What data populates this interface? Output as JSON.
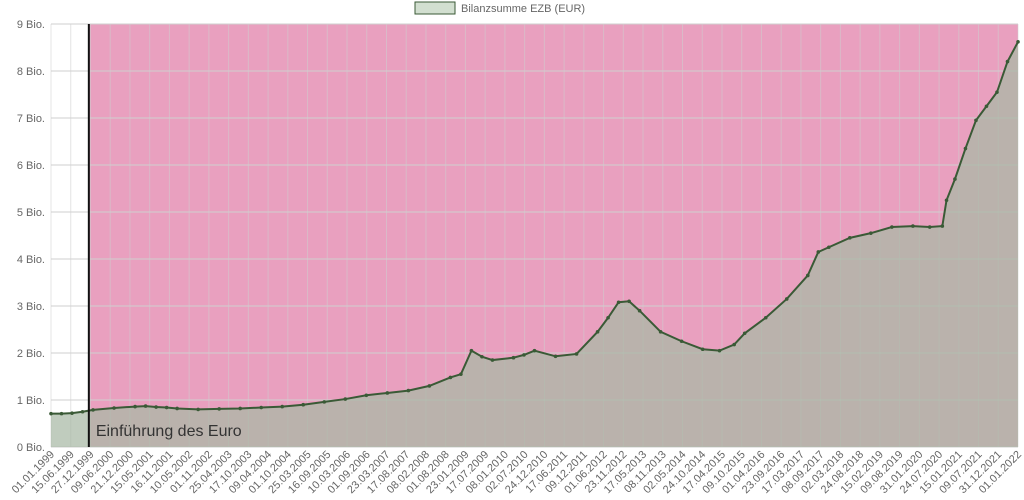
{
  "chart_data": {
    "type": "line",
    "title": "",
    "xlabel": "",
    "ylabel": "",
    "legend": {
      "position": "top-center",
      "entries": [
        "Bilanzsumme EZB (EUR)"
      ]
    },
    "grid": true,
    "ylim": [
      0,
      9
    ],
    "y_ticks": [
      "0 Bio.",
      "1 Bio.",
      "2 Bio.",
      "3 Bio.",
      "4 Bio.",
      "5 Bio.",
      "6 Bio.",
      "7 Bio.",
      "8 Bio.",
      "9 Bio."
    ],
    "x_tick_labels": [
      "01.01.1999",
      "15.06.1999",
      "27.12.1999",
      "09.06.2000",
      "21.12.2000",
      "15.05.2001",
      "16.11.2001",
      "10.05.2002",
      "01.11.2002",
      "25.04.2003",
      "17.10.2003",
      "09.04.2004",
      "01.10.2004",
      "25.03.2005",
      "16.09.2005",
      "10.03.2006",
      "01.09.2006",
      "23.03.2007",
      "17.08.2007",
      "08.02.2008",
      "01.08.2008",
      "23.01.2009",
      "17.07.2009",
      "08.01.2010",
      "02.07.2010",
      "24.12.2010",
      "17.06.2011",
      "09.12.2011",
      "01.06.2012",
      "23.11.2012",
      "17.05.2013",
      "08.11.2013",
      "02.05.2014",
      "24.10.2014",
      "17.04.2015",
      "09.10.2015",
      "01.04.2016",
      "23.09.2016",
      "17.03.2017",
      "08.09.2017",
      "02.03.2018",
      "24.08.2018",
      "15.02.2019",
      "09.08.2019",
      "31.01.2020",
      "24.07.2020",
      "15.01.2021",
      "09.07.2021",
      "31.12.2021",
      "01.01.2022"
    ],
    "series": [
      {
        "name": "Bilanzsumme EZB (EUR)",
        "unit": "Bio. EUR",
        "x": [
          1999.0,
          1999.25,
          1999.5,
          1999.75,
          2000.0,
          2000.5,
          2001.0,
          2001.25,
          2001.5,
          2001.75,
          2002.0,
          2002.5,
          2003.0,
          2003.5,
          2004.0,
          2004.5,
          2005.0,
          2005.5,
          2006.0,
          2006.5,
          2007.0,
          2007.5,
          2008.0,
          2008.5,
          2008.75,
          2009.0,
          2009.25,
          2009.5,
          2010.0,
          2010.25,
          2010.5,
          2011.0,
          2011.5,
          2012.0,
          2012.25,
          2012.5,
          2012.75,
          2013.0,
          2013.5,
          2014.0,
          2014.5,
          2014.9,
          2015.25,
          2015.5,
          2016.0,
          2016.5,
          2017.0,
          2017.25,
          2017.5,
          2018.0,
          2018.5,
          2019.0,
          2019.5,
          2019.9,
          2020.2,
          2020.3,
          2020.5,
          2020.75,
          2021.0,
          2021.25,
          2021.5,
          2021.75,
          2022.0
        ],
        "values": [
          0.71,
          0.71,
          0.72,
          0.75,
          0.79,
          0.83,
          0.86,
          0.87,
          0.85,
          0.84,
          0.82,
          0.8,
          0.81,
          0.82,
          0.84,
          0.86,
          0.9,
          0.96,
          1.02,
          1.1,
          1.15,
          1.2,
          1.3,
          1.48,
          1.55,
          2.05,
          1.92,
          1.85,
          1.9,
          1.96,
          2.05,
          1.93,
          1.98,
          2.45,
          2.75,
          3.08,
          3.1,
          2.9,
          2.45,
          2.25,
          2.08,
          2.05,
          2.18,
          2.42,
          2.75,
          3.15,
          3.65,
          4.15,
          4.25,
          4.45,
          4.55,
          4.68,
          4.7,
          4.68,
          4.7,
          5.25,
          5.7,
          6.35,
          6.95,
          7.25,
          7.55,
          8.2,
          8.62
        ]
      }
    ],
    "annotations": [
      {
        "text": "Einführung des Euro",
        "x": 1999.9
      }
    ],
    "colors": {
      "series_line": "#3a5a36",
      "series_fill": "#a7b9a5",
      "highlight_region": "#e9a0bf",
      "euro_line": "#111111",
      "grid": "#cfcfcf"
    }
  }
}
